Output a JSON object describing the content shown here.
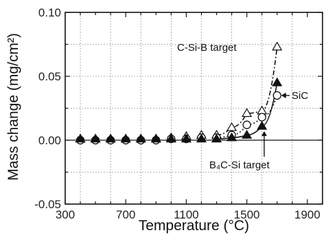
{
  "chart_data": {
    "type": "scatter",
    "title": "",
    "xlabel": "Temperature (°C)",
    "ylabel": "Mass change (mg/cm²)",
    "xlim": [
      300,
      2000
    ],
    "ylim": [
      -0.05,
      0.1
    ],
    "xticks": [
      300,
      700,
      1100,
      1500,
      1900
    ],
    "xtick_labels": [
      "300",
      "700",
      "1100",
      "1500",
      "1900"
    ],
    "yticks": [
      -0.05,
      0.0,
      0.05,
      0.1
    ],
    "ytick_labels": [
      "-0.05",
      "0.00",
      "0.05",
      "0.10"
    ],
    "grid": true,
    "series": [
      {
        "name": "C-Si-B target",
        "marker": "open-triangle",
        "line": "dash-dot",
        "x": [
          400,
          500,
          600,
          700,
          800,
          900,
          1000,
          1100,
          1200,
          1300,
          1400,
          1500,
          1600,
          1700
        ],
        "y": [
          0.001,
          0.001,
          0.001,
          0.001,
          0.001,
          0.001,
          0.002,
          0.003,
          0.004,
          0.004,
          0.01,
          0.021,
          0.023,
          0.073
        ]
      },
      {
        "name": "SiC",
        "marker": "open-circle",
        "line": "dotted",
        "x": [
          400,
          500,
          600,
          700,
          800,
          900,
          1000,
          1100,
          1200,
          1300,
          1400,
          1500,
          1600,
          1700
        ],
        "y": [
          0.0,
          0.0,
          0.0,
          0.0,
          0.0,
          0.0,
          0.001,
          0.001,
          0.002,
          0.002,
          0.004,
          0.012,
          0.018,
          0.035
        ]
      },
      {
        "name": "B₄C-Si target",
        "marker": "filled-triangle",
        "line": "solid",
        "x": [
          400,
          500,
          600,
          700,
          800,
          900,
          1000,
          1100,
          1200,
          1300,
          1400,
          1500,
          1600,
          1700
        ],
        "y": [
          0.001,
          0.001,
          0.001,
          0.001,
          0.001,
          0.001,
          0.001,
          0.001,
          0.001,
          0.001,
          0.002,
          0.004,
          0.011,
          0.045
        ]
      }
    ],
    "annotations": [
      {
        "text": "C-Si-B target",
        "series": 0
      },
      {
        "text": "SiC",
        "series": 1
      },
      {
        "text": "B₄C-Si target",
        "series": 2
      }
    ]
  }
}
